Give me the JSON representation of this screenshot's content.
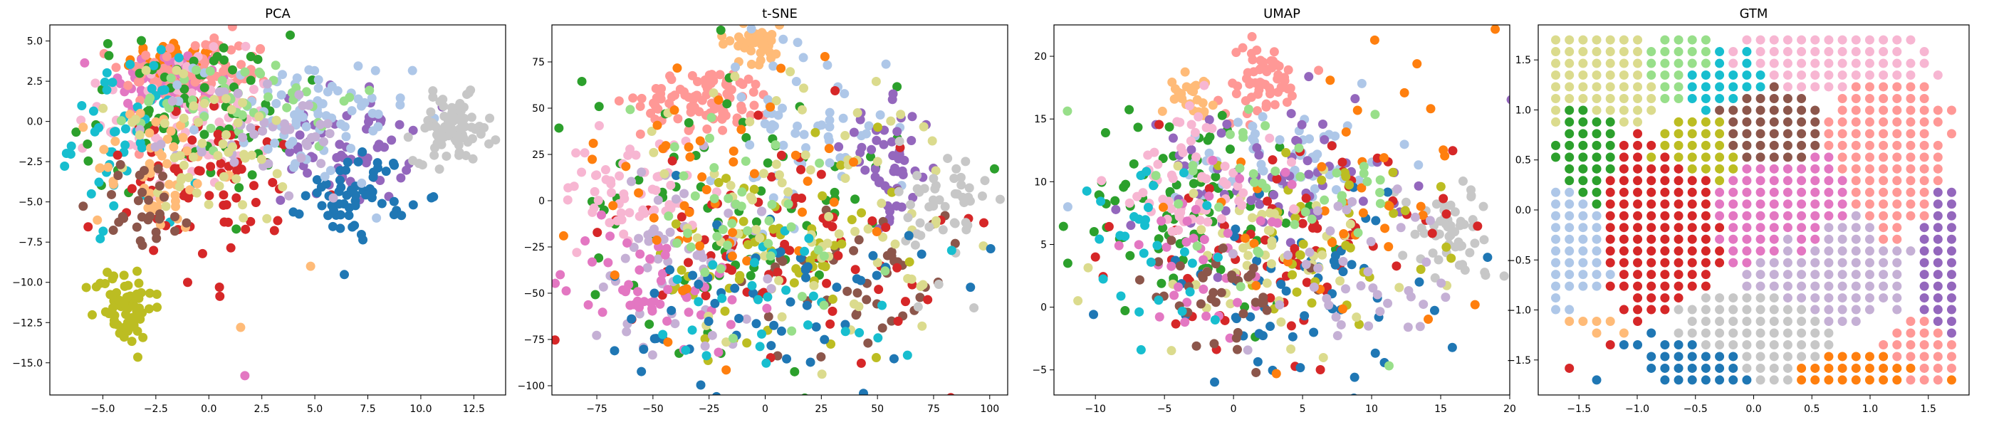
{
  "chart_data": [
    {
      "type": "scatter",
      "title": "PCA",
      "xlim": [
        -7.5,
        14
      ],
      "ylim": [
        -17,
        6
      ],
      "xticks": [
        -5.0,
        -2.5,
        0.0,
        2.5,
        5.0,
        7.5,
        10.0,
        12.5
      ],
      "yticks": [
        5.0,
        2.5,
        0.0,
        -2.5,
        -5.0,
        -7.5,
        -10.0,
        -12.5,
        -15.0
      ],
      "xtick_labels": [
        "−5.0",
        "−2.5",
        "0.0",
        "2.5",
        "5.0",
        "7.5",
        "10.0",
        "12.5"
      ],
      "ytick_labels": [
        "5.0",
        "2.5",
        "0.0",
        "−2.5",
        "−5.0",
        "−7.5",
        "−10.0",
        "−12.5",
        "−15.0"
      ],
      "clusters": [
        {
          "color": "#ff7f0e",
          "cx": -1.5,
          "cy": 3.5,
          "sx": 1.2,
          "sy": 0.8,
          "n": 60
        },
        {
          "color": "#e377c2",
          "cx": -2.0,
          "cy": 2.5,
          "sx": 1.5,
          "sy": 1.0,
          "n": 80
        },
        {
          "color": "#ff9896",
          "cx": -0.5,
          "cy": 3.0,
          "sx": 1.8,
          "sy": 1.2,
          "n": 90
        },
        {
          "color": "#f7b6d2",
          "cx": -1.0,
          "cy": 0.0,
          "sx": 2.0,
          "sy": 2.0,
          "n": 90
        },
        {
          "color": "#2ca02c",
          "cx": -1.0,
          "cy": 0.5,
          "sx": 2.5,
          "sy": 2.5,
          "n": 80
        },
        {
          "color": "#17becf",
          "cx": -4.0,
          "cy": -1.0,
          "sx": 1.2,
          "sy": 2.5,
          "n": 50
        },
        {
          "color": "#d62728",
          "cx": 0.5,
          "cy": -4.0,
          "sx": 3.0,
          "sy": 2.5,
          "n": 70
        },
        {
          "color": "#9467bd",
          "cx": 6.5,
          "cy": -1.5,
          "sx": 1.5,
          "sy": 1.8,
          "n": 60
        },
        {
          "color": "#1f77b4",
          "cx": 7.0,
          "cy": -4.5,
          "sx": 1.2,
          "sy": 1.3,
          "n": 60
        },
        {
          "color": "#aec7e8",
          "cx": 4.5,
          "cy": 0.0,
          "sx": 2.5,
          "sy": 2.0,
          "n": 80
        },
        {
          "color": "#c7c7c7",
          "cx": 11.5,
          "cy": -0.5,
          "sx": 0.9,
          "sy": 1.0,
          "n": 80
        },
        {
          "color": "#bcbd22",
          "cx": -4.0,
          "cy": -11.5,
          "sx": 0.7,
          "sy": 1.2,
          "n": 70
        },
        {
          "color": "#98df8a",
          "cx": 2.0,
          "cy": 1.5,
          "sx": 2.5,
          "sy": 1.5,
          "n": 50
        },
        {
          "color": "#ffbb78",
          "cx": -2.5,
          "cy": -3.0,
          "sx": 1.5,
          "sy": 2.0,
          "n": 50
        },
        {
          "color": "#c5b0d5",
          "cx": 3.0,
          "cy": -1.0,
          "sx": 2.0,
          "sy": 2.0,
          "n": 40
        },
        {
          "color": "#dbdb8d",
          "cx": 0.0,
          "cy": -2.0,
          "sx": 2.5,
          "sy": 2.5,
          "n": 50
        },
        {
          "color": "#8c564b",
          "cx": -3.0,
          "cy": -5.0,
          "sx": 1.2,
          "sy": 1.5,
          "n": 30
        }
      ],
      "outliers": [
        {
          "color": "#e377c2",
          "x": 1.7,
          "y": -15.8
        },
        {
          "color": "#ffbb78",
          "x": 1.5,
          "y": -12.8
        },
        {
          "color": "#d62728",
          "x": 0.5,
          "y": -10.3
        },
        {
          "color": "#d62728",
          "x": -1.0,
          "y": -10.0
        },
        {
          "color": "#ffbb78",
          "x": 4.8,
          "y": -9.0
        }
      ]
    },
    {
      "type": "scatter",
      "title": "t-SNE",
      "xlim": [
        -95,
        108
      ],
      "ylim": [
        -105,
        95
      ],
      "xticks": [
        -75,
        -50,
        -25,
        0,
        25,
        50,
        75,
        100
      ],
      "yticks": [
        75,
        50,
        25,
        0,
        -25,
        -50,
        -75,
        -100
      ],
      "xtick_labels": [
        "−75",
        "−50",
        "−25",
        "0",
        "25",
        "50",
        "75",
        "100"
      ],
      "ytick_labels": [
        "75",
        "50",
        "25",
        "0",
        "−25",
        "−50",
        "−75",
        "−100"
      ],
      "clusters": [
        {
          "color": "#ff9896",
          "cx": -25,
          "cy": 55,
          "sx": 15,
          "sy": 8,
          "n": 90
        },
        {
          "color": "#ffbb78",
          "cx": -5,
          "cy": 85,
          "sx": 8,
          "sy": 5,
          "n": 40
        },
        {
          "color": "#2ca02c",
          "cx": -10,
          "cy": 0,
          "sx": 35,
          "sy": 40,
          "n": 80
        },
        {
          "color": "#aec7e8",
          "cx": 15,
          "cy": 40,
          "sx": 20,
          "sy": 25,
          "n": 60
        },
        {
          "color": "#9467bd",
          "cx": 55,
          "cy": 20,
          "sx": 10,
          "sy": 15,
          "n": 50
        },
        {
          "color": "#8c564b",
          "cx": 40,
          "cy": -40,
          "sx": 25,
          "sy": 25,
          "n": 50
        },
        {
          "color": "#d62728",
          "cx": 10,
          "cy": -20,
          "sx": 35,
          "sy": 30,
          "n": 80
        },
        {
          "color": "#bcbd22",
          "cx": 5,
          "cy": -35,
          "sx": 30,
          "sy": 30,
          "n": 60
        },
        {
          "color": "#f7b6d2",
          "cx": -60,
          "cy": 5,
          "sx": 15,
          "sy": 15,
          "n": 60
        },
        {
          "color": "#c5b0d5",
          "cx": -40,
          "cy": -30,
          "sx": 20,
          "sy": 25,
          "n": 60
        },
        {
          "color": "#e377c2",
          "cx": -50,
          "cy": -45,
          "sx": 20,
          "sy": 15,
          "n": 50
        },
        {
          "color": "#dbdb8d",
          "cx": 20,
          "cy": 0,
          "sx": 35,
          "sy": 40,
          "n": 80
        },
        {
          "color": "#c7c7c7",
          "cx": 80,
          "cy": -5,
          "sx": 10,
          "sy": 20,
          "n": 50
        },
        {
          "color": "#1f77b4",
          "cx": 0,
          "cy": -55,
          "sx": 35,
          "sy": 25,
          "n": 60
        },
        {
          "color": "#ff7f0e",
          "cx": -20,
          "cy": 10,
          "sx": 30,
          "sy": 35,
          "n": 50
        },
        {
          "color": "#17becf",
          "cx": 10,
          "cy": -50,
          "sx": 30,
          "sy": 20,
          "n": 30
        },
        {
          "color": "#98df8a",
          "cx": -15,
          "cy": -15,
          "sx": 35,
          "sy": 35,
          "n": 40
        }
      ],
      "outliers": []
    },
    {
      "type": "scatter",
      "title": "UMAP",
      "xlim": [
        -13,
        20
      ],
      "ylim": [
        -7,
        22.5
      ],
      "xticks": [
        -10,
        -5,
        0,
        5,
        10,
        15,
        20
      ],
      "yticks": [
        20,
        15,
        10,
        5,
        0,
        -5
      ],
      "xtick_labels": [
        "−10",
        "−5",
        "0",
        "5",
        "10",
        "15",
        "20"
      ],
      "ytick_labels": [
        "20",
        "15",
        "10",
        "5",
        "0",
        "−5"
      ],
      "clusters": [
        {
          "color": "#ff9896",
          "cx": 2,
          "cy": 18,
          "sx": 1.5,
          "sy": 1.5,
          "n": 60
        },
        {
          "color": "#ffbb78",
          "cx": -3,
          "cy": 17,
          "sx": 0.8,
          "sy": 0.8,
          "n": 25
        },
        {
          "color": "#2ca02c",
          "cx": -3,
          "cy": 8,
          "sx": 4,
          "sy": 4,
          "n": 80
        },
        {
          "color": "#aec7e8",
          "cx": 4,
          "cy": 12,
          "sx": 4,
          "sy": 2,
          "n": 60
        },
        {
          "color": "#9467bd",
          "cx": 2,
          "cy": 10,
          "sx": 5,
          "sy": 3,
          "n": 70
        },
        {
          "color": "#c7c7c7",
          "cx": 16,
          "cy": 6,
          "sx": 2,
          "sy": 2,
          "n": 60
        },
        {
          "color": "#d62728",
          "cx": 4,
          "cy": 5,
          "sx": 6,
          "sy": 4,
          "n": 80
        },
        {
          "color": "#1f77b4",
          "cx": 5,
          "cy": 1,
          "sx": 6,
          "sy": 4,
          "n": 60
        },
        {
          "color": "#bcbd22",
          "cx": 7,
          "cy": 6,
          "sx": 4,
          "sy": 3,
          "n": 40
        },
        {
          "color": "#dbdb8d",
          "cx": 2,
          "cy": 4,
          "sx": 6,
          "sy": 4,
          "n": 60
        },
        {
          "color": "#f7b6d2",
          "cx": -3,
          "cy": 10,
          "sx": 3,
          "sy": 3,
          "n": 60
        },
        {
          "color": "#e377c2",
          "cx": -2,
          "cy": 4,
          "sx": 3,
          "sy": 3,
          "n": 40
        },
        {
          "color": "#8c564b",
          "cx": -1,
          "cy": 1,
          "sx": 3,
          "sy": 2,
          "n": 40
        },
        {
          "color": "#ff7f0e",
          "cx": 8,
          "cy": 8,
          "sx": 6,
          "sy": 5,
          "n": 40
        },
        {
          "color": "#17becf",
          "cx": -6,
          "cy": 5,
          "sx": 3,
          "sy": 3,
          "n": 30
        },
        {
          "color": "#98df8a",
          "cx": 3,
          "cy": 9,
          "sx": 5,
          "sy": 4,
          "n": 40
        },
        {
          "color": "#c5b0d5",
          "cx": 9,
          "cy": 2,
          "sx": 4,
          "sy": 3,
          "n": 40
        }
      ],
      "outliers": [
        {
          "color": "#aec7e8",
          "x": -12,
          "y": 8
        },
        {
          "color": "#d62728",
          "x": -10,
          "y": 4
        },
        {
          "color": "#2ca02c",
          "x": -12,
          "y": 3.5
        }
      ]
    },
    {
      "type": "scatter",
      "grid_layout": true,
      "title": "GTM",
      "xlim": [
        -1.85,
        1.85
      ],
      "ylim": [
        -1.85,
        1.85
      ],
      "xticks": [
        -1.5,
        -1.0,
        -0.5,
        0.0,
        0.5,
        1.0,
        1.5
      ],
      "yticks": [
        1.5,
        1.0,
        0.5,
        0.0,
        -0.5,
        -1.0,
        -1.5
      ],
      "xtick_labels": [
        "−1.5",
        "−1.0",
        "−0.5",
        "0.0",
        "0.5",
        "1.0",
        "1.5"
      ],
      "ytick_labels": [
        "1.5",
        "1.0",
        "0.5",
        "0.0",
        "−0.5",
        "−1.0",
        "−1.5"
      ],
      "grid_points": 30,
      "grid_range": [
        -1.7,
        1.7
      ],
      "clusters": [
        {
          "color": "#dbdb8d",
          "cx": -1.3,
          "cy": 1.3,
          "sx": 0.3,
          "sy": 0.3,
          "n": 40
        },
        {
          "color": "#2ca02c",
          "cx": -1.4,
          "cy": 0.6,
          "sx": 0.15,
          "sy": 0.4,
          "n": 30
        },
        {
          "color": "#d62728",
          "cx": -0.8,
          "cy": -0.1,
          "sx": 0.4,
          "sy": 0.5,
          "n": 60
        },
        {
          "color": "#ff9896",
          "cx": 1.1,
          "cy": 0.5,
          "sx": 0.3,
          "sy": 0.5,
          "n": 60
        },
        {
          "color": "#ff9896",
          "cx": 1.4,
          "cy": -1.5,
          "sx": 0.2,
          "sy": 0.2,
          "n": 40
        },
        {
          "color": "#ffbb78",
          "cx": -1.4,
          "cy": -1.15,
          "sx": 0.15,
          "sy": 0.05,
          "n": 20
        },
        {
          "color": "#ff7f0e",
          "cx": 0.9,
          "cy": -1.6,
          "sx": 0.5,
          "sy": 0.1,
          "n": 30
        },
        {
          "color": "#9467bd",
          "cx": 1.6,
          "cy": -0.5,
          "sx": 0.1,
          "sy": 0.5,
          "n": 30
        },
        {
          "color": "#aec7e8",
          "cx": -1.5,
          "cy": -0.3,
          "sx": 0.2,
          "sy": 0.3,
          "n": 20
        },
        {
          "color": "#f7b6d2",
          "cx": 0.5,
          "cy": 1.5,
          "sx": 0.5,
          "sy": 0.2,
          "n": 40
        },
        {
          "color": "#c7c7c7",
          "cx": 0.0,
          "cy": -1.3,
          "sx": 0.4,
          "sy": 0.3,
          "n": 30
        },
        {
          "color": "#1f77b4",
          "cx": -0.4,
          "cy": -1.5,
          "sx": 0.3,
          "sy": 0.2,
          "n": 20
        },
        {
          "color": "#98df8a",
          "cx": -0.6,
          "cy": 1.4,
          "sx": 0.2,
          "sy": 0.2,
          "n": 15
        },
        {
          "color": "#bcbd22",
          "cx": -0.4,
          "cy": 0.6,
          "sx": 0.3,
          "sy": 0.2,
          "n": 15
        },
        {
          "color": "#e377c2",
          "cx": 0.3,
          "cy": 0.0,
          "sx": 0.4,
          "sy": 0.4,
          "n": 20
        },
        {
          "color": "#17becf",
          "cx": -0.2,
          "cy": 1.3,
          "sx": 0.3,
          "sy": 0.2,
          "n": 15
        },
        {
          "color": "#c5b0d5",
          "cx": 0.6,
          "cy": -0.5,
          "sx": 0.4,
          "sy": 0.4,
          "n": 25
        },
        {
          "color": "#8c564b",
          "cx": 0.1,
          "cy": 0.8,
          "sx": 0.3,
          "sy": 0.3,
          "n": 20
        }
      ]
    }
  ]
}
